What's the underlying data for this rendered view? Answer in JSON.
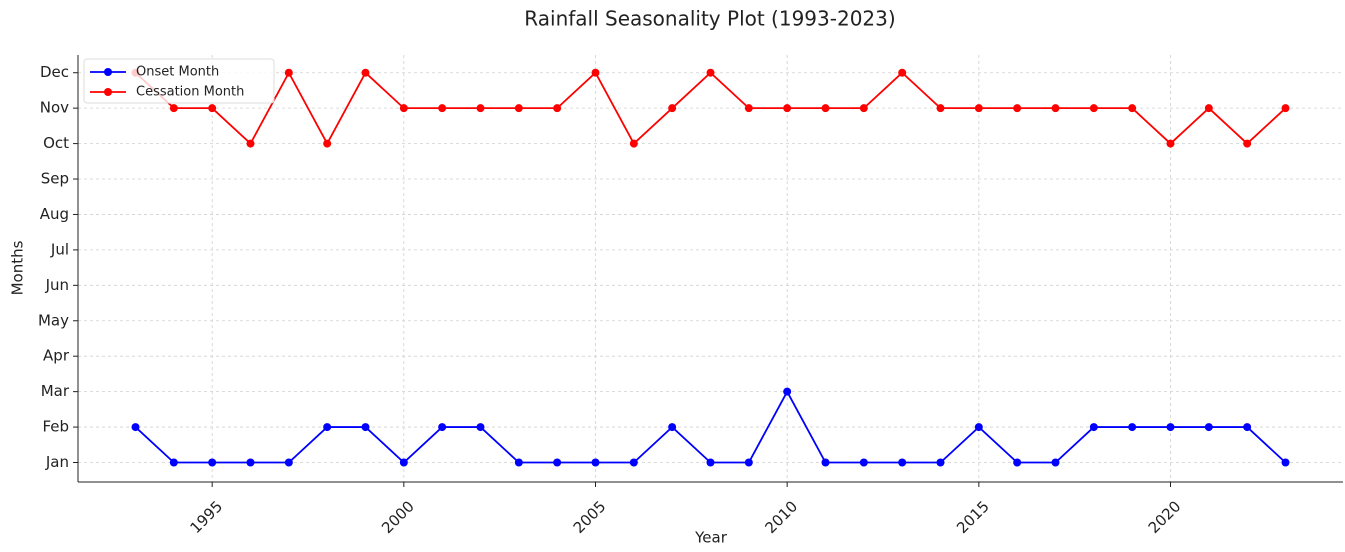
{
  "chart_data": {
    "type": "line",
    "title": "Rainfall Seasonality Plot (1993-2023)",
    "x_label": "Year",
    "y_label": "Months",
    "x": [
      1993,
      1994,
      1995,
      1996,
      1997,
      1998,
      1999,
      2000,
      2001,
      2002,
      2003,
      2004,
      2005,
      2006,
      2007,
      2008,
      2009,
      2010,
      2011,
      2012,
      2013,
      2014,
      2015,
      2016,
      2017,
      2018,
      2019,
      2020,
      2021,
      2022,
      2023
    ],
    "series": [
      {
        "name": "Onset Month",
        "color": "#0000ff",
        "values": [
          2,
          1,
          1,
          1,
          1,
          2,
          2,
          1,
          2,
          2,
          1,
          1,
          1,
          1,
          2,
          1,
          1,
          3,
          1,
          1,
          1,
          1,
          2,
          1,
          1,
          2,
          2,
          2,
          2,
          2,
          1
        ]
      },
      {
        "name": "Cessation Month",
        "color": "#ff0000",
        "values": [
          12,
          11,
          11,
          10,
          12,
          10,
          12,
          11,
          11,
          11,
          11,
          11,
          12,
          10,
          11,
          12,
          11,
          11,
          11,
          11,
          12,
          11,
          11,
          11,
          11,
          11,
          11,
          10,
          11,
          10,
          11
        ]
      }
    ],
    "xlim": [
      1991.5,
      2024.5
    ],
    "xticks": [
      1995,
      2000,
      2005,
      2010,
      2015,
      2020
    ],
    "ylim": [
      0.45,
      12.5
    ],
    "yticks": [
      {
        "value": 1,
        "label": "Jan"
      },
      {
        "value": 2,
        "label": "Feb"
      },
      {
        "value": 3,
        "label": "Mar"
      },
      {
        "value": 4,
        "label": "Apr"
      },
      {
        "value": 5,
        "label": "May"
      },
      {
        "value": 6,
        "label": "Jun"
      },
      {
        "value": 7,
        "label": "Jul"
      },
      {
        "value": 8,
        "label": "Aug"
      },
      {
        "value": 9,
        "label": "Sep"
      },
      {
        "value": 10,
        "label": "Oct"
      },
      {
        "value": 11,
        "label": "Nov"
      },
      {
        "value": 12,
        "label": "Dec"
      }
    ],
    "grid": true,
    "legend": "upper-left"
  }
}
